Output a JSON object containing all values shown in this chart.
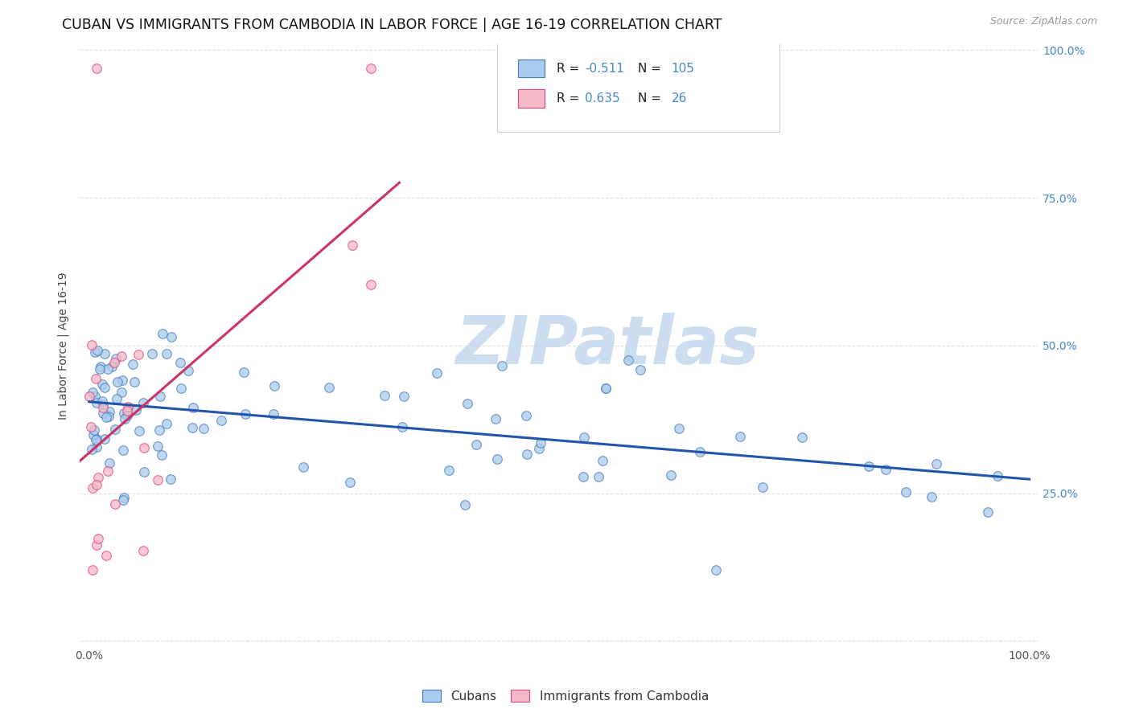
{
  "title": "CUBAN VS IMMIGRANTS FROM CAMBODIA IN LABOR FORCE | AGE 16-19 CORRELATION CHART",
  "source": "Source: ZipAtlas.com",
  "ylabel": "In Labor Force | Age 16-19",
  "background_color": "#ffffff",
  "watermark_text": "ZIPatlas",
  "cubans_color": "#aaccee",
  "cambodia_color": "#f5b8c8",
  "cubans_edge_color": "#4477bb",
  "cambodia_edge_color": "#dd4477",
  "cubans_line_color": "#2255aa",
  "cambodia_line_color": "#cc3366",
  "legend_R_cubans": "-0.511",
  "legend_N_cubans": "105",
  "legend_R_cambodia": "0.635",
  "legend_N_cambodia": "26",
  "legend_label_cubans": "Cubans",
  "legend_label_cambodia": "Immigrants from Cambodia",
  "title_fontsize": 12.5,
  "axis_label_fontsize": 10,
  "tick_fontsize": 10,
  "grid_color": "#dddddd",
  "watermark_color": "#ccddf0",
  "watermark_fontsize": 60,
  "right_tick_color": "#4488cc",
  "scatter_size": 70,
  "scatter_alpha": 0.75,
  "scatter_linewidth": 0.8,
  "cuba_seed": 99,
  "camb_seed": 55
}
